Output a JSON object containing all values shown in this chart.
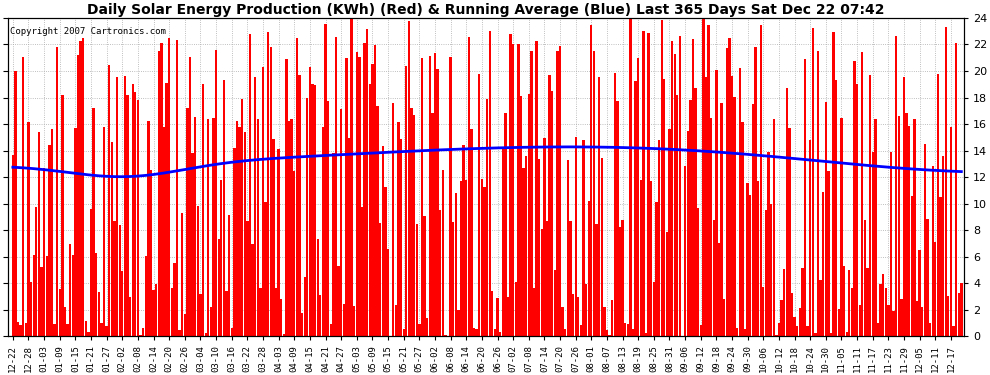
{
  "title": "Daily Solar Energy Production (KWh) (Red) & Running Average (Blue) Last 365 Days Sat Dec 22 07:42",
  "copyright": "Copyright 2007 Cartronics.com",
  "ylim": [
    0,
    24.0
  ],
  "yticks": [
    0.0,
    2.0,
    4.0,
    6.0,
    8.0,
    10.0,
    12.0,
    14.0,
    16.0,
    18.0,
    20.0,
    22.0,
    24.0
  ],
  "bar_color": "#FF0000",
  "line_color": "#0000FF",
  "bg_color": "#FFFFFF",
  "grid_color": "#AAAAAA",
  "title_fontsize": 10,
  "x_tick_labels": [
    "12-22",
    "12-28",
    "01-03",
    "01-09",
    "01-15",
    "01-21",
    "01-27",
    "02-02",
    "02-08",
    "02-14",
    "02-20",
    "02-26",
    "03-04",
    "03-10",
    "03-16",
    "03-22",
    "03-28",
    "04-03",
    "04-09",
    "04-15",
    "04-21",
    "04-27",
    "05-03",
    "05-09",
    "05-15",
    "05-21",
    "05-27",
    "06-02",
    "06-08",
    "06-14",
    "06-20",
    "06-26",
    "07-02",
    "07-08",
    "07-14",
    "07-20",
    "07-26",
    "08-01",
    "08-07",
    "08-13",
    "08-19",
    "08-25",
    "08-31",
    "09-06",
    "09-12",
    "09-18",
    "09-24",
    "09-30",
    "10-06",
    "10-12",
    "10-18",
    "10-24",
    "10-30",
    "11-05",
    "11-11",
    "11-17",
    "11-23",
    "11-29",
    "12-05",
    "12-11",
    "12-17"
  ],
  "x_tick_positions": [
    0,
    6,
    12,
    18,
    24,
    30,
    36,
    42,
    48,
    54,
    60,
    66,
    72,
    78,
    84,
    90,
    96,
    102,
    108,
    114,
    120,
    126,
    132,
    138,
    144,
    150,
    156,
    162,
    168,
    174,
    180,
    186,
    192,
    198,
    204,
    210,
    216,
    222,
    228,
    234,
    240,
    246,
    252,
    258,
    264,
    270,
    276,
    282,
    288,
    294,
    300,
    306,
    312,
    318,
    324,
    330,
    336,
    342,
    348,
    354,
    360
  ],
  "avg_start": 12.8,
  "avg_dip": 11.8,
  "avg_peak": 13.5,
  "avg_end": 12.5
}
